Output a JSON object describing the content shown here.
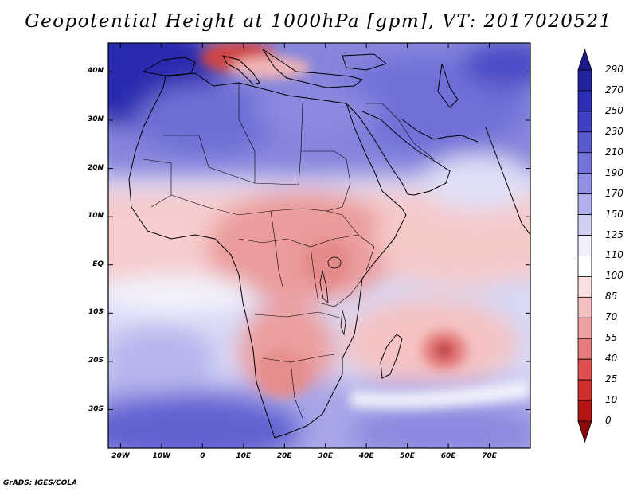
{
  "title": "Geopotential Height at 1000hPa [gpm], VT: 2017020521",
  "credit": "GrADS: IGES/COLA",
  "lat_ticks": [
    "40N",
    "30N",
    "20N",
    "10N",
    "EQ",
    "10S",
    "20S",
    "30S"
  ],
  "lon_ticks": [
    "20W",
    "10W",
    "0",
    "10E",
    "20E",
    "30E",
    "40E",
    "50E",
    "60E",
    "70E"
  ],
  "colorbar": {
    "levels": [
      "290",
      "270",
      "250",
      "230",
      "210",
      "190",
      "170",
      "150",
      "125",
      "110",
      "100",
      "85",
      "70",
      "55",
      "40",
      "25",
      "10",
      "0"
    ],
    "colors": [
      "#1a1a8c",
      "#2323a0",
      "#2e2eb4",
      "#4040c4",
      "#5a5acf",
      "#7474d9",
      "#9191e3",
      "#b0b0ec",
      "#d0d0f5",
      "#f0f0ff",
      "#ffffff",
      "#fbe0e0",
      "#f5c0c0",
      "#eea0a0",
      "#e77a7a",
      "#e05050",
      "#d02f2f",
      "#b31515",
      "#8c0a0a"
    ]
  },
  "chart_data": {
    "type": "heatmap",
    "title": "Geopotential Height at 1000hPa [gpm], VT: 2017020521",
    "units": "gpm",
    "valid_time": "2017020521",
    "lon_range": [
      -23,
      80
    ],
    "lat_range": [
      -38,
      46
    ],
    "lon_ticks": [
      -20,
      -10,
      0,
      10,
      20,
      30,
      40,
      50,
      60,
      70
    ],
    "lat_ticks": [
      40,
      30,
      20,
      10,
      0,
      -10,
      -20,
      -30
    ],
    "contour_levels": [
      0,
      10,
      25,
      40,
      55,
      70,
      85,
      100,
      110,
      125,
      150,
      170,
      190,
      210,
      230,
      250,
      270,
      290
    ],
    "features": [
      {
        "name": "low over Italy / Adriatic",
        "lon": 10,
        "lat": 43,
        "value": 40
      },
      {
        "name": "low south of Madagascar",
        "lon": 59,
        "lat": -18,
        "value": 10
      },
      {
        "name": "high over North Atlantic",
        "lon": -20,
        "lat": 38,
        "value": 270
      },
      {
        "name": "high over Arabia",
        "lon": 45,
        "lat": 30,
        "value": 200
      },
      {
        "name": "high in Southern Ocean",
        "lon": 20,
        "lat": -35,
        "value": 230
      }
    ]
  }
}
